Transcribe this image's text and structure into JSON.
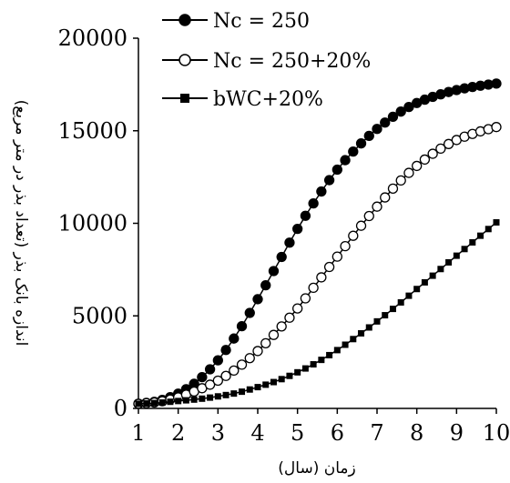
{
  "chart_data": {
    "type": "line",
    "xlabel": "زمان (سال)",
    "ylabel": "اندازه بانک بذر (تعداد بذر در متر مربع)",
    "xlim": [
      1,
      10
    ],
    "ylim": [
      0,
      20000
    ],
    "x_ticks": [
      "1",
      "2",
      "3",
      "4",
      "5",
      "6",
      "7",
      "8",
      "9",
      "10"
    ],
    "y_ticks": [
      "0",
      "5000",
      "10000",
      "15000",
      "20000"
    ],
    "grid": false,
    "legend_position": "top-left",
    "series": [
      {
        "name": "Nc = 250",
        "marker": "filled-circle",
        "color": "#000000",
        "x": [
          1,
          1.5,
          2,
          2.5,
          3,
          3.5,
          4,
          4.5,
          5,
          5.5,
          6,
          6.5,
          7,
          7.5,
          8,
          8.5,
          9,
          9.5,
          10
        ],
        "values": [
          250,
          400,
          800,
          1500,
          2600,
          4100,
          5900,
          7800,
          9700,
          11400,
          12900,
          14100,
          15100,
          15900,
          16500,
          16900,
          17200,
          17400,
          17550
        ]
      },
      {
        "name": "Nc = 250+20%",
        "marker": "open-circle",
        "color": "#000000",
        "x": [
          1,
          1.5,
          2,
          2.5,
          3,
          3.5,
          4,
          4.5,
          5,
          5.5,
          6,
          6.5,
          7,
          7.5,
          8,
          8.5,
          9,
          9.5,
          10
        ],
        "values": [
          250,
          350,
          600,
          1000,
          1500,
          2200,
          3100,
          4200,
          5400,
          6800,
          8200,
          9600,
          10900,
          12100,
          13100,
          13900,
          14500,
          14900,
          15200
        ]
      },
      {
        "name": "bWC+20%",
        "marker": "filled-square",
        "color": "#000000",
        "x": [
          1,
          1.5,
          2,
          2.5,
          3,
          3.5,
          4,
          4.5,
          5,
          5.5,
          6,
          6.5,
          7,
          7.5,
          8,
          8.5,
          9,
          9.5,
          10
        ],
        "values": [
          250,
          300,
          400,
          500,
          650,
          850,
          1150,
          1500,
          1950,
          2500,
          3150,
          3900,
          4700,
          5550,
          6450,
          7350,
          8250,
          9150,
          10050
        ]
      }
    ]
  }
}
